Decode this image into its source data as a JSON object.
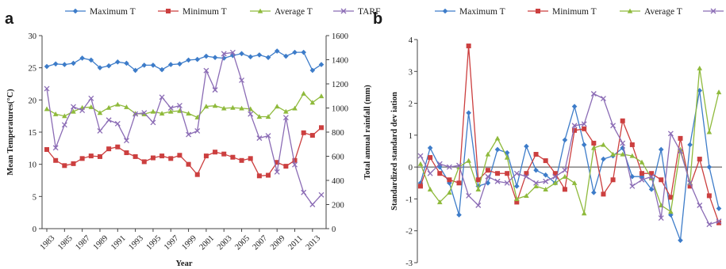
{
  "panel_letters": {
    "a": "a",
    "b": "b"
  },
  "colors": {
    "max": "#3d7cc9",
    "min": "#cc3f3f",
    "avg": "#8fba3c",
    "tarf": "#8b6cb5"
  },
  "chart_data": [
    {
      "type": "line",
      "panel": "a",
      "xlabel": "Year",
      "ylabel": "Mean Temperatures(°C)",
      "y2label": "Total annual rainfall (mm)",
      "x_tick_labels": [
        "1983",
        "1985",
        "1987",
        "1989",
        "1991",
        "1993",
        "1995",
        "1997",
        "1999",
        "2001",
        "2003",
        "2005",
        "2007",
        "2009",
        "2011",
        "2013"
      ],
      "x": [
        1983,
        1984,
        1985,
        1986,
        1987,
        1988,
        1989,
        1990,
        1991,
        1992,
        1993,
        1994,
        1995,
        1996,
        1997,
        1998,
        1999,
        2000,
        2001,
        2002,
        2003,
        2004,
        2005,
        2006,
        2007,
        2008,
        2009,
        2010,
        2011,
        2012,
        2013,
        2014
      ],
      "ylim": [
        0,
        30
      ],
      "y_ticks": [
        "0",
        "5",
        "10",
        "15",
        "20",
        "25",
        "30"
      ],
      "y2lim": [
        0,
        1600
      ],
      "y2_ticks": [
        "0",
        "200",
        "400",
        "600",
        "800",
        "1000",
        "1200",
        "1400",
        "1600"
      ],
      "legend": [
        "Maximum T",
        "Minimum T",
        "Average T",
        "TARF"
      ],
      "series": [
        {
          "name": "Maximum T",
          "axis": "left",
          "values": [
            25.2,
            25.6,
            25.5,
            25.7,
            26.5,
            26.2,
            25.0,
            25.3,
            25.9,
            25.7,
            24.6,
            25.4,
            25.4,
            24.7,
            25.5,
            25.6,
            26.2,
            26.3,
            26.8,
            26.6,
            26.5,
            26.9,
            27.2,
            26.7,
            27.0,
            26.6,
            27.6,
            26.8,
            27.4,
            27.4,
            24.6,
            25.5
          ]
        },
        {
          "name": "Minimum T",
          "axis": "left",
          "values": [
            12.3,
            10.6,
            9.8,
            10.1,
            10.9,
            11.3,
            11.2,
            12.4,
            12.7,
            11.8,
            11.2,
            10.4,
            11.0,
            11.3,
            10.9,
            11.4,
            10.0,
            8.4,
            11.3,
            11.9,
            11.6,
            11.1,
            10.6,
            10.9,
            8.2,
            8.3,
            10.3,
            9.7,
            10.6,
            14.9,
            14.5,
            15.7
          ]
        },
        {
          "name": "Average T",
          "axis": "left",
          "values": [
            18.6,
            17.8,
            17.5,
            18.2,
            18.8,
            18.9,
            18.0,
            18.8,
            19.3,
            18.9,
            17.9,
            17.8,
            18.2,
            17.9,
            18.2,
            18.3,
            17.9,
            17.3,
            19.0,
            19.1,
            18.7,
            18.8,
            18.7,
            18.6,
            17.4,
            17.4,
            19.0,
            18.2,
            18.7,
            21.0,
            19.6,
            20.6
          ]
        },
        {
          "name": "TARF",
          "axis": "right",
          "values": [
            1160,
            670,
            860,
            1010,
            980,
            1080,
            810,
            900,
            870,
            730,
            950,
            960,
            880,
            1090,
            1000,
            1020,
            780,
            810,
            1310,
            1150,
            1450,
            1460,
            1230,
            950,
            750,
            770,
            470,
            920,
            530,
            300,
            200,
            280
          ]
        }
      ]
    },
    {
      "type": "line",
      "panel": "b",
      "ylabel": "Standardized standard dev iation",
      "ylim": [
        -3,
        4
      ],
      "y_ticks": [
        "-3",
        "-2",
        "-1",
        "0",
        "1",
        "2",
        "3",
        "4"
      ],
      "x": [
        1983,
        1984,
        1985,
        1986,
        1987,
        1988,
        1989,
        1990,
        1991,
        1992,
        1993,
        1994,
        1995,
        1996,
        1997,
        1998,
        1999,
        2000,
        2001,
        2002,
        2003,
        2004,
        2005,
        2006,
        2007,
        2008,
        2009,
        2010,
        2011,
        2012,
        2013,
        2014
      ],
      "legend": [
        "Maximum T",
        "Minimum T",
        "Average T",
        "TARF"
      ],
      "series": [
        {
          "name": "Maximum T",
          "values": [
            -0.5,
            0.6,
            0.0,
            -0.5,
            -1.5,
            1.7,
            -0.6,
            -0.5,
            0.55,
            0.45,
            -0.6,
            0.65,
            -0.1,
            -0.25,
            -0.5,
            0.85,
            1.9,
            0.7,
            -0.8,
            0.25,
            0.35,
            0.6,
            -0.3,
            -0.3,
            -0.7,
            0.55,
            -1.5,
            -2.3,
            0.7,
            2.4,
            0.0,
            -1.3
          ]
        },
        {
          "name": "Minimum T",
          "values": [
            -0.6,
            0.3,
            -0.2,
            -0.4,
            -0.5,
            3.8,
            -0.4,
            -0.1,
            -0.2,
            -0.2,
            -1.1,
            -0.2,
            0.4,
            0.2,
            -0.2,
            -0.7,
            1.15,
            1.2,
            0.75,
            -0.85,
            -0.4,
            1.45,
            0.7,
            -0.2,
            -0.2,
            -0.4,
            -0.95,
            0.9,
            -0.6,
            0.25,
            -0.9,
            -1.75
          ]
        },
        {
          "name": "Average T",
          "values": [
            0.1,
            -0.7,
            -1.1,
            -0.8,
            0.0,
            0.2,
            -0.7,
            0.4,
            0.9,
            0.3,
            -1.0,
            -0.9,
            -0.6,
            -0.7,
            -0.5,
            -0.3,
            -0.5,
            -1.45,
            0.6,
            0.7,
            0.4,
            0.4,
            0.35,
            0.15,
            -0.35,
            -1.2,
            -1.4,
            0.55,
            -0.5,
            3.1,
            1.1,
            2.35
          ]
        },
        {
          "name": "TARF",
          "values": [
            0.35,
            -0.2,
            0.1,
            0.0,
            0.05,
            -0.9,
            -1.2,
            -0.3,
            -0.45,
            -0.5,
            -0.2,
            -0.3,
            -0.5,
            -0.45,
            -0.3,
            -0.1,
            1.3,
            1.35,
            2.3,
            2.15,
            1.3,
            0.75,
            -0.6,
            -0.4,
            -0.3,
            -1.6,
            1.05,
            0.5,
            -0.5,
            -1.2,
            -1.8,
            -1.7
          ]
        }
      ]
    }
  ]
}
